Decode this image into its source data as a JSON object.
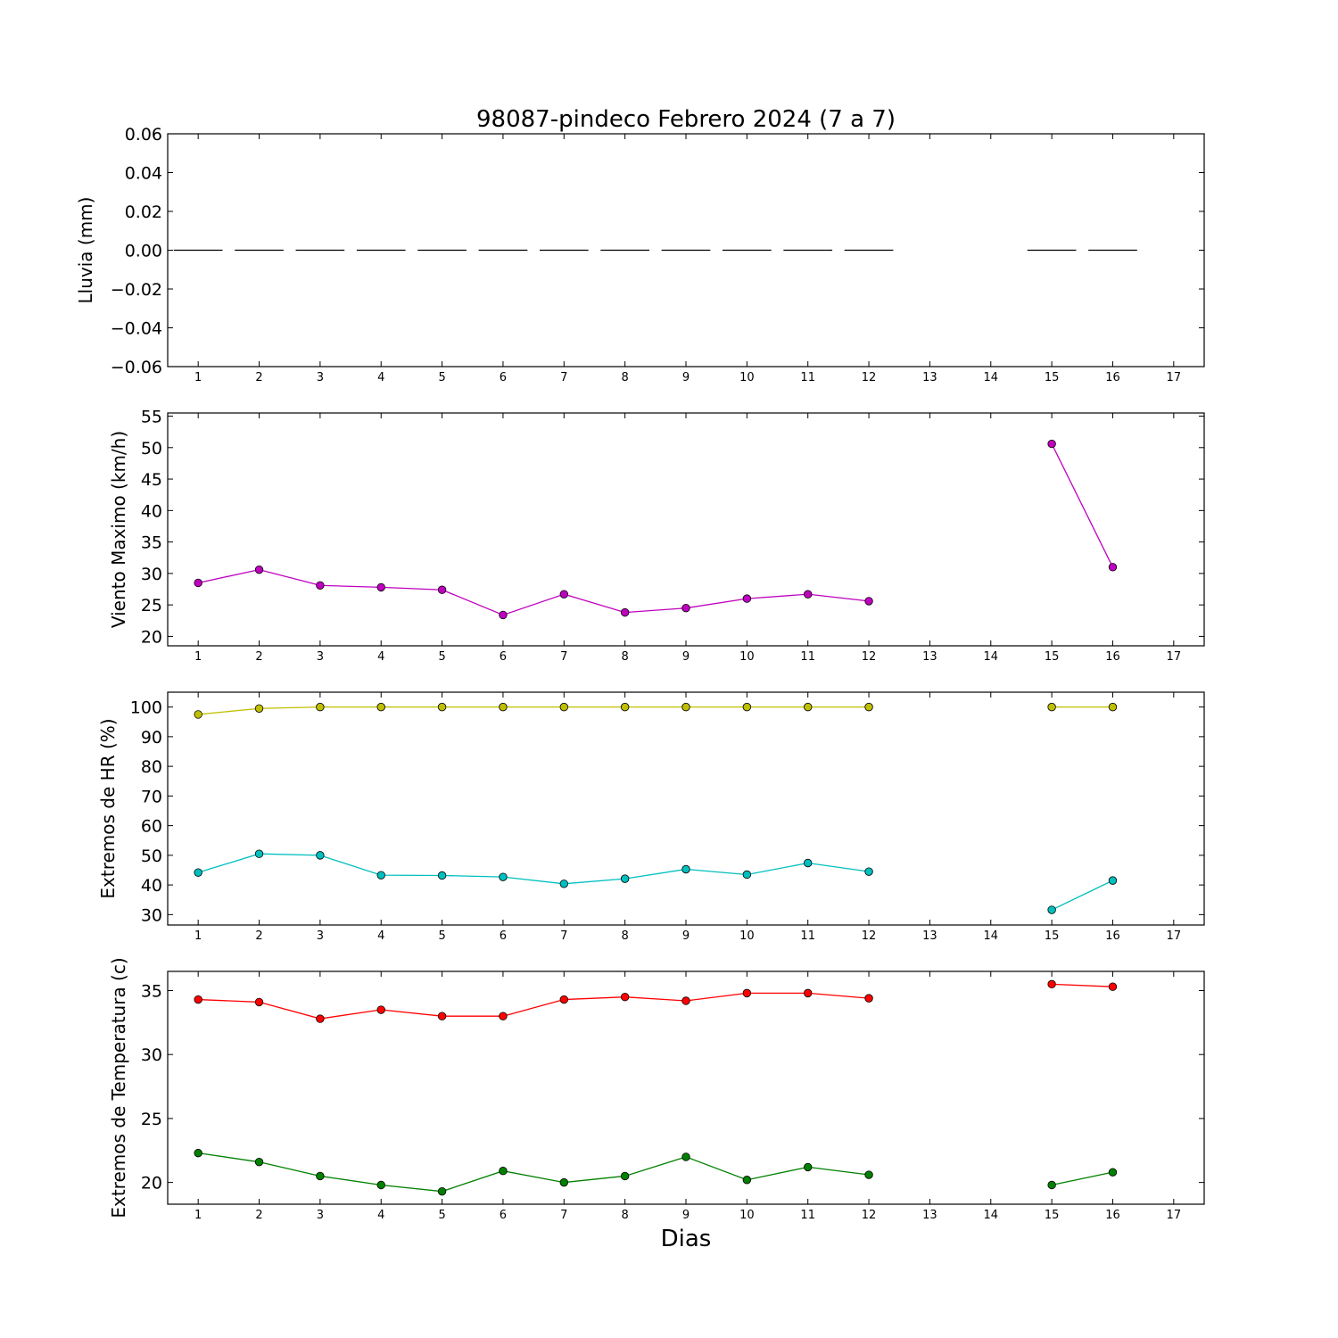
{
  "chart_data": {
    "title": "98087-pindeco Febrero 2024  (7 a 7)",
    "xlabel": "Dias",
    "x_categories": [
      "1",
      "2",
      "3",
      "4",
      "5",
      "6",
      "7",
      "8",
      "9",
      "10",
      "11",
      "12",
      "13",
      "14",
      "15",
      "16",
      "17"
    ],
    "xlim": [
      0.5,
      17.5
    ],
    "panels": [
      {
        "type": "bar",
        "ylabel": "Lluvia (mm)",
        "ylim": [
          -0.06,
          0.06
        ],
        "yticks": [
          -0.06,
          -0.04,
          -0.02,
          0.0,
          0.02,
          0.04,
          0.06
        ],
        "ytick_labels": [
          "−0.06",
          "−0.04",
          "−0.02",
          "0.00",
          "0.02",
          "0.04",
          "0.06"
        ],
        "series": [
          {
            "color": "#000000",
            "x": [
              1,
              2,
              3,
              4,
              5,
              6,
              7,
              8,
              9,
              10,
              11,
              12,
              15,
              16
            ],
            "values": [
              0,
              0,
              0,
              0,
              0,
              0,
              0,
              0,
              0,
              0,
              0,
              0,
              0,
              0
            ]
          }
        ]
      },
      {
        "type": "line",
        "ylabel": "Viento Maximo (km/h)",
        "ylim": [
          18.5,
          55.5
        ],
        "yticks": [
          20,
          25,
          30,
          35,
          40,
          45,
          50,
          55
        ],
        "ytick_labels": [
          "20",
          "25",
          "30",
          "35",
          "40",
          "45",
          "50",
          "55"
        ],
        "series": [
          {
            "color": "#bf00bf",
            "x": [
              1,
              2,
              3,
              4,
              5,
              6,
              7,
              8,
              9,
              10,
              11,
              12,
              null,
              15,
              16
            ],
            "values": [
              28.5,
              30.6,
              28.1,
              27.8,
              27.4,
              23.4,
              26.7,
              23.8,
              24.5,
              26.0,
              26.7,
              25.6,
              null,
              50.6,
              31.0
            ]
          }
        ]
      },
      {
        "type": "line",
        "ylabel": "Extremos de HR (%)",
        "ylim": [
          26.5,
          105
        ],
        "yticks": [
          30,
          40,
          50,
          60,
          70,
          80,
          90,
          100
        ],
        "ytick_labels": [
          "30",
          "40",
          "50",
          "60",
          "70",
          "80",
          "90",
          "100"
        ],
        "series": [
          {
            "color": "#bfbf00",
            "x": [
              1,
              2,
              3,
              4,
              5,
              6,
              7,
              8,
              9,
              10,
              11,
              12,
              null,
              15,
              16
            ],
            "values": [
              97.5,
              99.5,
              100,
              100,
              100,
              100,
              100,
              100,
              100,
              100,
              100,
              100,
              null,
              100,
              100
            ]
          },
          {
            "color": "#00bfbf",
            "x": [
              1,
              2,
              3,
              4,
              5,
              6,
              7,
              8,
              9,
              10,
              11,
              12,
              null,
              15,
              16
            ],
            "values": [
              44.2,
              50.5,
              50.0,
              43.3,
              43.2,
              42.7,
              40.4,
              42.1,
              45.3,
              43.5,
              47.4,
              44.5,
              null,
              31.6,
              41.5
            ]
          }
        ]
      },
      {
        "type": "line",
        "ylabel": "Extremos de Temperatura (c)",
        "ylim": [
          18.3,
          36.5
        ],
        "yticks": [
          20,
          25,
          30,
          35
        ],
        "ytick_labels": [
          "20",
          "25",
          "30",
          "35"
        ],
        "series": [
          {
            "color": "#ff0000",
            "x": [
              1,
              2,
              3,
              4,
              5,
              6,
              7,
              8,
              9,
              10,
              11,
              12,
              null,
              15,
              16
            ],
            "values": [
              34.3,
              34.1,
              32.8,
              33.5,
              33.0,
              33.0,
              34.3,
              34.5,
              34.2,
              34.8,
              34.8,
              34.4,
              null,
              35.5,
              35.3
            ]
          },
          {
            "color": "#008000",
            "x": [
              1,
              2,
              3,
              4,
              5,
              6,
              7,
              8,
              9,
              10,
              11,
              12,
              null,
              15,
              16
            ],
            "values": [
              22.3,
              21.6,
              20.5,
              19.8,
              19.3,
              20.9,
              20.0,
              20.5,
              22.0,
              20.2,
              21.2,
              20.6,
              null,
              19.8,
              20.8
            ]
          }
        ]
      }
    ]
  }
}
